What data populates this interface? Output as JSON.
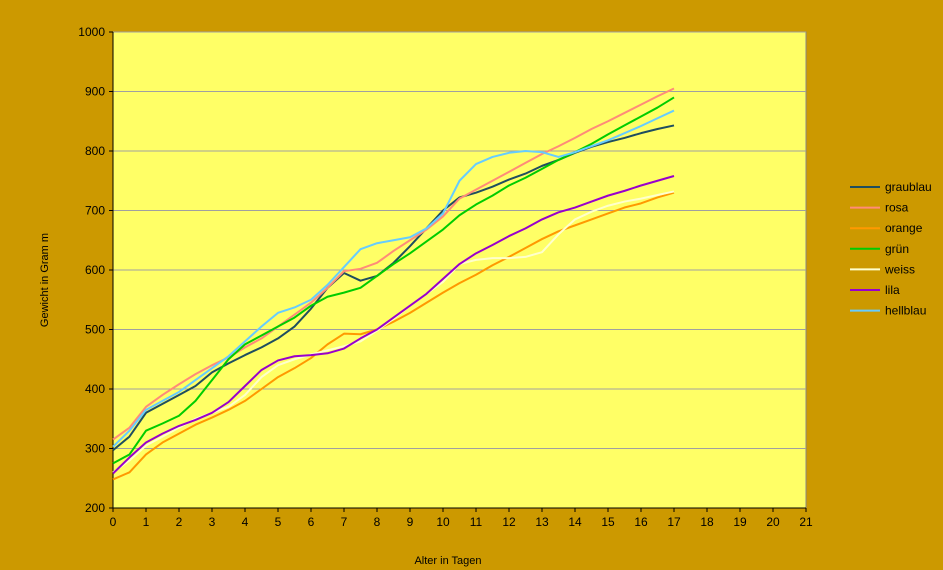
{
  "chart_data": {
    "type": "line",
    "x_label": "Alter in Tagen",
    "y_label": "Gewicht in Gram m",
    "xlim": [
      0,
      21
    ],
    "xticks": [
      0,
      1,
      2,
      3,
      4,
      5,
      6,
      7,
      8,
      9,
      10,
      11,
      12,
      13,
      14,
      15,
      16,
      17,
      18,
      19,
      20,
      21
    ],
    "ylim": [
      200,
      1000
    ],
    "yticks": [
      200,
      300,
      400,
      500,
      600,
      700,
      800,
      900,
      1000
    ],
    "grid": true,
    "legend": "right",
    "x": [
      0,
      0.5,
      1,
      1.5,
      2,
      2.5,
      3,
      3.5,
      4,
      4.5,
      5,
      5.5,
      6,
      6.5,
      7,
      7.5,
      8,
      8.5,
      9,
      9.5,
      10,
      10.5,
      11,
      11.5,
      12,
      12.5,
      13,
      13.5,
      14,
      14.5,
      15,
      15.5,
      16,
      16.5,
      17
    ],
    "series": [
      {
        "name": "graublau",
        "color": "#1f4e5f",
        "values": [
          297,
          320,
          360,
          375,
          390,
          405,
          428,
          443,
          457,
          470,
          485,
          505,
          535,
          570,
          595,
          582,
          590,
          612,
          640,
          670,
          700,
          722,
          730,
          740,
          752,
          762,
          775,
          785,
          797,
          807,
          815,
          822,
          830,
          837,
          843
        ]
      },
      {
        "name": "rosa",
        "color": "#ff8c78",
        "values": [
          315,
          335,
          370,
          390,
          408,
          425,
          440,
          453,
          470,
          485,
          505,
          525,
          545,
          570,
          598,
          602,
          612,
          632,
          650,
          668,
          690,
          720,
          735,
          750,
          765,
          780,
          795,
          808,
          822,
          837,
          850,
          864,
          878,
          892,
          905
        ]
      },
      {
        "name": "orange",
        "color": "#ff9900",
        "values": [
          248,
          260,
          290,
          310,
          325,
          340,
          352,
          365,
          380,
          400,
          420,
          435,
          452,
          475,
          493,
          492,
          500,
          513,
          528,
          545,
          562,
          578,
          592,
          608,
          622,
          637,
          652,
          665,
          675,
          685,
          695,
          705,
          712,
          722,
          730
        ]
      },
      {
        "name": "grün",
        "color": "#00cc00",
        "values": [
          275,
          290,
          330,
          342,
          355,
          380,
          415,
          450,
          475,
          490,
          505,
          520,
          540,
          555,
          562,
          570,
          590,
          610,
          628,
          648,
          668,
          692,
          710,
          725,
          742,
          755,
          770,
          785,
          798,
          812,
          828,
          843,
          858,
          873,
          890
        ]
      },
      {
        "name": "weiss",
        "color": "#ffffcc",
        "values": [
          260,
          280,
          305,
          320,
          335,
          350,
          360,
          370,
          390,
          420,
          440,
          450,
          458,
          465,
          472,
          480,
          498,
          518,
          540,
          560,
          580,
          610,
          617,
          620,
          620,
          622,
          630,
          660,
          685,
          698,
          708,
          715,
          720,
          726,
          732
        ]
      },
      {
        "name": "lila",
        "color": "#9900cc",
        "values": [
          258,
          285,
          310,
          325,
          338,
          348,
          360,
          378,
          405,
          432,
          448,
          455,
          457,
          460,
          468,
          485,
          500,
          520,
          540,
          560,
          585,
          610,
          628,
          642,
          657,
          670,
          685,
          697,
          705,
          715,
          725,
          733,
          742,
          750,
          758
        ]
      },
      {
        "name": "hellblau",
        "color": "#66ccff",
        "values": [
          303,
          330,
          365,
          380,
          395,
          415,
          435,
          455,
          480,
          505,
          528,
          537,
          550,
          575,
          605,
          635,
          645,
          650,
          655,
          670,
          695,
          750,
          778,
          790,
          797,
          800,
          798,
          790,
          798,
          808,
          818,
          830,
          842,
          855,
          868
        ]
      }
    ]
  }
}
